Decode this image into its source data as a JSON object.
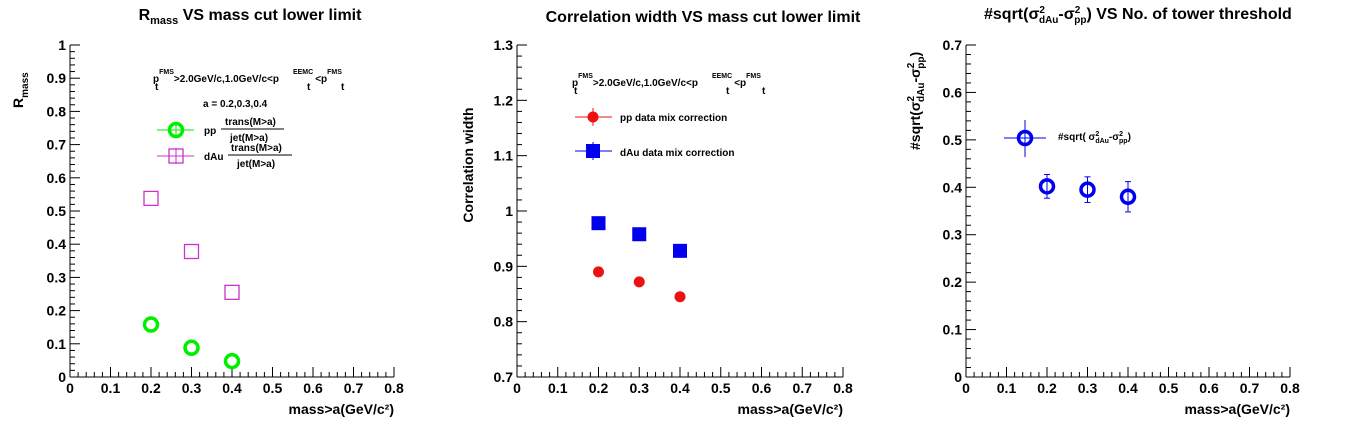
{
  "chart_data": [
    {
      "type": "scatter",
      "title": "R",
      "title_sub": "mass",
      "title_rest": " VS mass cut lower limit",
      "xlabel": "mass>a(GeV/c²)",
      "ylabel": "R",
      "ylabel_sub": "mass",
      "xlim": [
        0,
        0.8
      ],
      "ylim": [
        0,
        1
      ],
      "xticks": [
        "0",
        "0.1",
        "0.2",
        "0.3",
        "0.4",
        "0.5",
        "0.6",
        "0.7",
        "0.8"
      ],
      "yticks": [
        "0",
        "0.1",
        "0.2",
        "0.3",
        "0.4",
        "0.5",
        "0.6",
        "0.7",
        "0.8",
        "0.9",
        "1"
      ],
      "annotations": [
        "p",
        "FMS",
        ">2.0GeV/c,1.0GeV/c<p",
        "EEMC",
        "<p",
        "FMS",
        "t",
        "a = 0.2,0.3,0.4"
      ],
      "legend": [
        {
          "name": "pp",
          "formula_num": "trans(M>a)",
          "formula_den": "jet(M>a)"
        },
        {
          "name": "dAu",
          "formula_num": "trans(M>a)",
          "formula_den": "jet(M>a)"
        }
      ],
      "series": [
        {
          "name": "pp",
          "color": "#00ee00",
          "marker": "open-circle",
          "x": [
            0.2,
            0.3,
            0.4
          ],
          "y": [
            0.158,
            0.088,
            0.048
          ]
        },
        {
          "name": "dAu",
          "color": "#cc33cc",
          "marker": "open-square",
          "x": [
            0.2,
            0.3,
            0.4
          ],
          "y": [
            0.538,
            0.378,
            0.255
          ]
        }
      ]
    },
    {
      "type": "scatter",
      "title": "Correlation width VS mass cut lower limit",
      "xlabel": "mass>a(GeV/c²)",
      "ylabel": "Correlation width",
      "xlim": [
        0,
        0.8
      ],
      "ylim": [
        0.7,
        1.3
      ],
      "xticks": [
        "0",
        "0.1",
        "0.2",
        "0.3",
        "0.4",
        "0.5",
        "0.6",
        "0.7",
        "0.8"
      ],
      "yticks": [
        "0.7",
        "0.8",
        "0.9",
        "1",
        "1.1",
        "1.2",
        "1.3"
      ],
      "annotations": [
        "p",
        "FMS",
        ">2.0GeV/c,1.0GeV/c<p",
        "EEMC",
        "<p",
        "FMS",
        "t"
      ],
      "legend": [
        {
          "name": "pp data mix correction"
        },
        {
          "name": "dAu data mix correction"
        }
      ],
      "series": [
        {
          "name": "pp data mix correction",
          "color": "#ee1111",
          "marker": "filled-circle",
          "x": [
            0.2,
            0.3,
            0.4
          ],
          "y": [
            0.89,
            0.872,
            0.845
          ]
        },
        {
          "name": "dAu data mix correction",
          "color": "#0000ee",
          "marker": "filled-square",
          "x": [
            0.2,
            0.3,
            0.4
          ],
          "y": [
            0.978,
            0.958,
            0.928
          ]
        }
      ]
    },
    {
      "type": "scatter",
      "title": "#sqrt(σ",
      "title_parts": [
        "2",
        "dAu",
        "-σ",
        "2",
        "pp",
        ") VS No. of tower threshold"
      ],
      "xlabel": "mass>a(GeV/c²)",
      "ylabel": "#sqrt(σ",
      "ylabel_parts": [
        "2",
        "dAu",
        "-σ",
        "2",
        "pp",
        ")"
      ],
      "xlim": [
        0,
        0.8
      ],
      "ylim": [
        0,
        0.7
      ],
      "xticks": [
        "0",
        "0.1",
        "0.2",
        "0.3",
        "0.4",
        "0.5",
        "0.6",
        "0.7",
        "0.8"
      ],
      "yticks": [
        "0",
        "0.1",
        "0.2",
        "0.3",
        "0.4",
        "0.5",
        "0.6",
        "0.7"
      ],
      "legend": [
        {
          "name": "#sqrt( σ",
          "parts": [
            "2",
            "dAu",
            "-σ",
            "2",
            "pp",
            ")"
          ]
        }
      ],
      "series": [
        {
          "name": "#sqrt( σ 2 dAu -σ 2 pp )",
          "color": "#0000ee",
          "marker": "open-circle",
          "x": [
            0.2,
            0.3,
            0.4
          ],
          "y": [
            0.402,
            0.395,
            0.38
          ],
          "yerr": [
            0.025,
            0.027,
            0.032
          ]
        }
      ]
    }
  ]
}
